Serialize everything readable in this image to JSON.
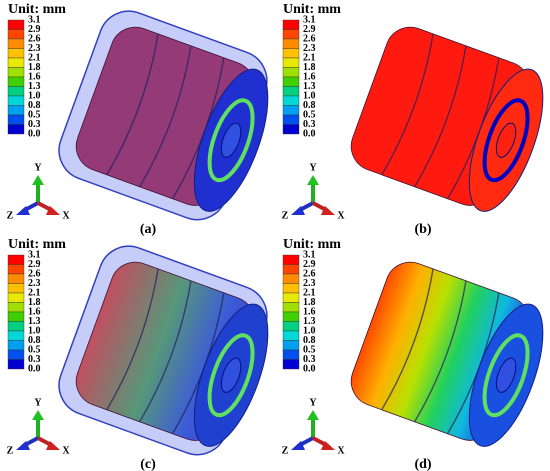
{
  "panels": [
    {
      "label": "(a)",
      "unit": "Unit: mm",
      "legend": [
        "3.1",
        "2.9",
        "2.6",
        "2.3",
        "2.1",
        "1.8",
        "1.6",
        "1.3",
        "1.0",
        "0.8",
        "0.5",
        "0.3",
        "0.0"
      ],
      "axes": {
        "y": "Y",
        "z": "Z",
        "x": "X"
      }
    },
    {
      "label": "(b)",
      "unit": "Unit: mm",
      "legend": [
        "3.1",
        "2.9",
        "2.6",
        "2.3",
        "2.1",
        "1.8",
        "1.6",
        "1.3",
        "1.0",
        "0.8",
        "0.5",
        "0.3",
        "0.0"
      ],
      "axes": {
        "y": "Y",
        "z": "Z",
        "x": "X"
      }
    },
    {
      "label": "(c)",
      "unit": "Unit: mm",
      "legend": [
        "3.1",
        "2.9",
        "2.6",
        "2.3",
        "2.1",
        "1.8",
        "1.6",
        "1.3",
        "1.0",
        "0.8",
        "0.5",
        "0.3",
        "0.0"
      ],
      "axes": {
        "y": "Y",
        "z": "Z",
        "x": "X"
      }
    },
    {
      "label": "(d)",
      "unit": "Unit: mm",
      "legend": [
        "3.1",
        "2.9",
        "2.6",
        "2.3",
        "2.1",
        "1.8",
        "1.6",
        "1.3",
        "1.0",
        "0.8",
        "0.5",
        "0.3",
        "0.0"
      ],
      "axes": {
        "y": "Y",
        "z": "Z",
        "x": "X"
      }
    }
  ]
}
